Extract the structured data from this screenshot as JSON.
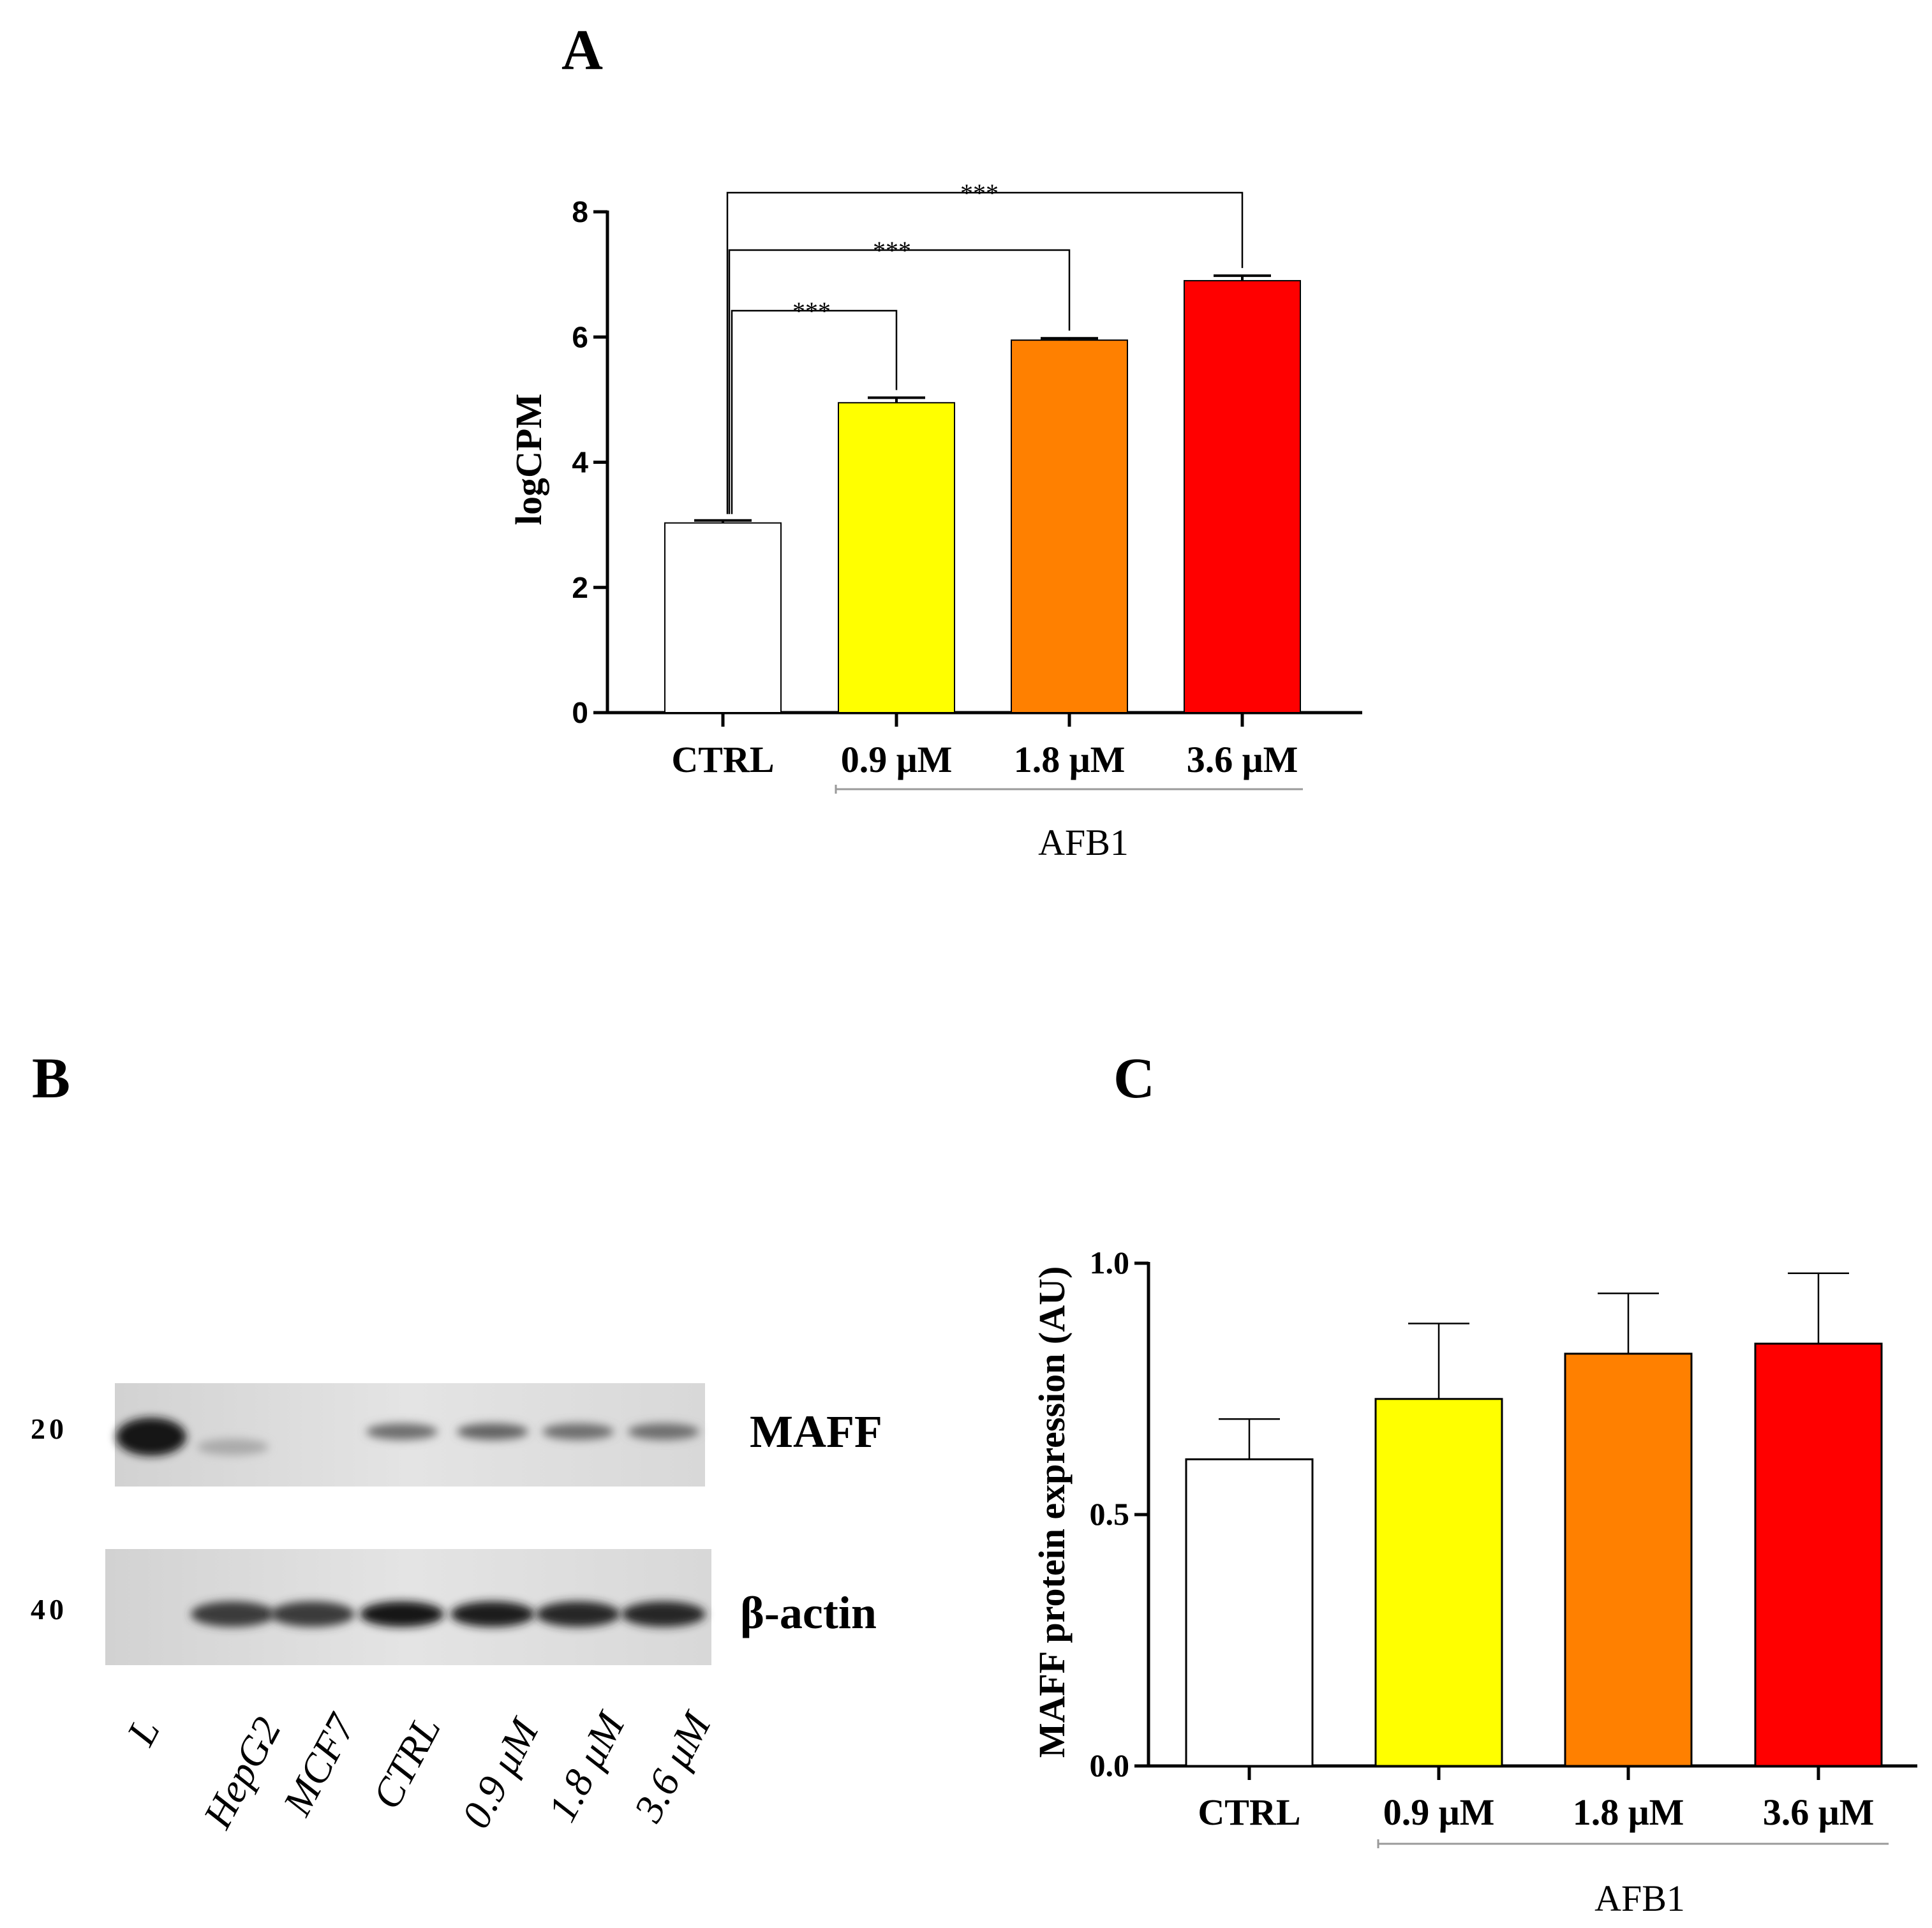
{
  "panels": {
    "a": {
      "letter": "A"
    },
    "b": {
      "letter": "B"
    },
    "c": {
      "letter": "C"
    }
  },
  "colors": {
    "ctrl": "#ffffff",
    "low": "#ffff00",
    "mid": "#ff8000",
    "high": "#ff0000",
    "axis": "#000000"
  },
  "chart_data": [
    {
      "id": "panel-a",
      "type": "bar",
      "title": "",
      "xlabel": "",
      "ylabel": "logCPM",
      "categories": [
        "CTRL",
        "0.9 μM",
        "1.8 μM",
        "3.6 μM"
      ],
      "values": [
        3.03,
        4.95,
        5.95,
        6.9
      ],
      "errors": [
        0.04,
        0.08,
        0.03,
        0.08
      ],
      "colors": [
        "#ffffff",
        "#ffff00",
        "#ff8000",
        "#ff0000"
      ],
      "ylim": [
        0,
        8
      ],
      "yticks": [
        "0",
        "2",
        "4",
        "6",
        "8"
      ],
      "group_label": "AFB1",
      "significance": [
        {
          "from": "CTRL",
          "to": "0.9 μM",
          "label": "***"
        },
        {
          "from": "CTRL",
          "to": "1.8 μM",
          "label": "***"
        },
        {
          "from": "CTRL",
          "to": "3.6 μM",
          "label": "***"
        }
      ]
    },
    {
      "id": "panel-c",
      "type": "bar",
      "title": "",
      "xlabel": "",
      "ylabel": "MAFF protein expression (AU)",
      "categories": [
        "CTRL",
        "0.9 μM",
        "1.8 μM",
        "3.6 μM"
      ],
      "values": [
        0.61,
        0.73,
        0.82,
        0.84
      ],
      "errors": [
        0.08,
        0.15,
        0.12,
        0.14
      ],
      "colors": [
        "#ffffff",
        "#ffff00",
        "#ff8000",
        "#ff0000"
      ],
      "ylim": [
        0,
        1.0
      ],
      "yticks": [
        "0.0",
        "0.5",
        "1.0"
      ],
      "group_label": "AFB1"
    }
  ],
  "blot": {
    "bands": [
      {
        "label": "MAFF",
        "marker": "20"
      },
      {
        "label": "β-actin",
        "marker": "40"
      }
    ],
    "lanes": [
      "L",
      "HepG2",
      "MCF7",
      "CTRL",
      "0.9 μM",
      "1.8 μM",
      "3.6 μM"
    ],
    "maff_intensity": [
      1.0,
      0.25,
      0.0,
      0.55,
      0.6,
      0.55,
      0.55
    ],
    "actin_intensity": [
      0.05,
      0.75,
      0.75,
      0.95,
      0.9,
      0.85,
      0.85
    ]
  }
}
